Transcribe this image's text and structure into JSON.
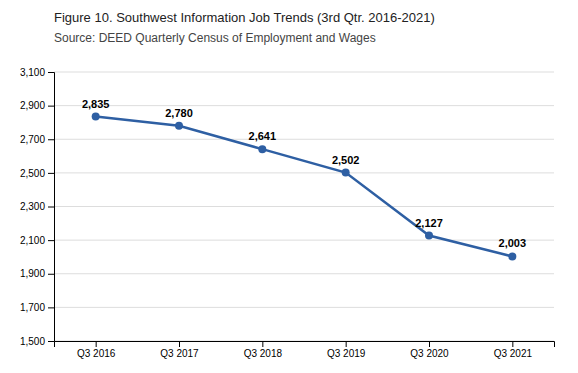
{
  "chart_data": {
    "type": "line",
    "title": "Figure 10. Southwest Information Job Trends (3rd Qtr. 2016-2021)",
    "subtitle": "Source: DEED Quarterly Census of Employment and Wages",
    "categories": [
      "Q3 2016",
      "Q3 2017",
      "Q3 2018",
      "Q3 2019",
      "Q3 2020",
      "Q3 2021"
    ],
    "values": [
      2835,
      2780,
      2641,
      2502,
      2127,
      2003
    ],
    "value_labels": [
      "2,835",
      "2,780",
      "2,641",
      "2,502",
      "2,127",
      "2,003"
    ],
    "data_labels": true,
    "color": "#2E5FA3",
    "marker": "circle",
    "ylim": [
      1500,
      3100
    ],
    "yticks": [
      {
        "value": 1500,
        "label": "1,500"
      },
      {
        "value": 1700,
        "label": "1,700"
      },
      {
        "value": 1900,
        "label": "1,900"
      },
      {
        "value": 2100,
        "label": "2,100"
      },
      {
        "value": 2300,
        "label": "2,300"
      },
      {
        "value": 2500,
        "label": "2,500"
      },
      {
        "value": 2700,
        "label": "2,700"
      },
      {
        "value": 2900,
        "label": "2,900"
      },
      {
        "value": 3100,
        "label": "3,100"
      }
    ],
    "grid": true
  }
}
